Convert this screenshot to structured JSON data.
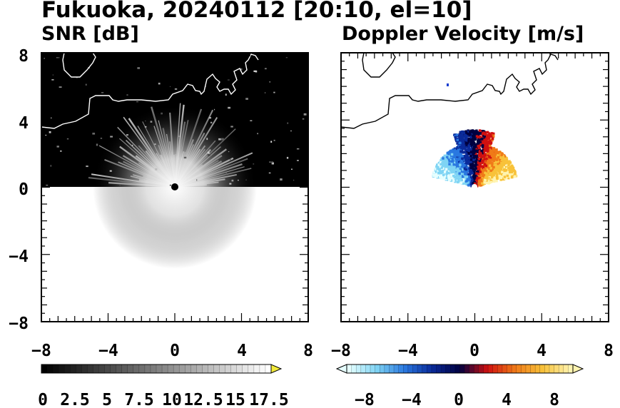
{
  "title": "Fukuoka, 20240112 [20:10, el=10]",
  "chart_data": [
    {
      "type": "heatmap",
      "title": "SNR [dB]",
      "xlim": [
        -8,
        8
      ],
      "ylim": [
        -8,
        8
      ],
      "x_ticks": [
        "−8",
        "−4",
        "0",
        "4",
        "8"
      ],
      "y_ticks": [
        "8",
        "4",
        "0",
        "−4",
        "−8"
      ],
      "colorbar": {
        "range": [
          0,
          20
        ],
        "labels": [
          "0",
          "2.5",
          "5",
          "7.5",
          "10",
          "12.5",
          "15",
          "17.5"
        ],
        "colors": [
          "#000000",
          "#ffffff"
        ],
        "extend": "max",
        "extend_color": "#f2ea3a"
      },
      "field": "Sector 0–8 km north of radar: black background (low SNR) with bright radial streaks near the radar and scattered echoes; white coastline"
    },
    {
      "type": "heatmap",
      "title": "Doppler Velocity [m/s]",
      "xlim": [
        -8,
        8
      ],
      "ylim": [
        -8,
        8
      ],
      "x_ticks": [
        "−8",
        "−4",
        "0",
        "4",
        "8"
      ],
      "y_ticks": [
        "8",
        "4",
        "0",
        "−4",
        "−8"
      ],
      "colorbar": {
        "range": [
          -10,
          10
        ],
        "labels": [
          "−8",
          "−4",
          "0",
          "4",
          "8"
        ],
        "colors": [
          "#e6ffff",
          "#7fd4f4",
          "#2a78e0",
          "#0a2a9a",
          "#000040",
          "#d01010",
          "#f07a18",
          "#f8c23a",
          "#fff4b0"
        ],
        "extend": "both"
      },
      "field": "Velocities within ~3 km north of radar: negative (blue) to the west, positive (red/yellow) to the east; black coastline"
    }
  ]
}
